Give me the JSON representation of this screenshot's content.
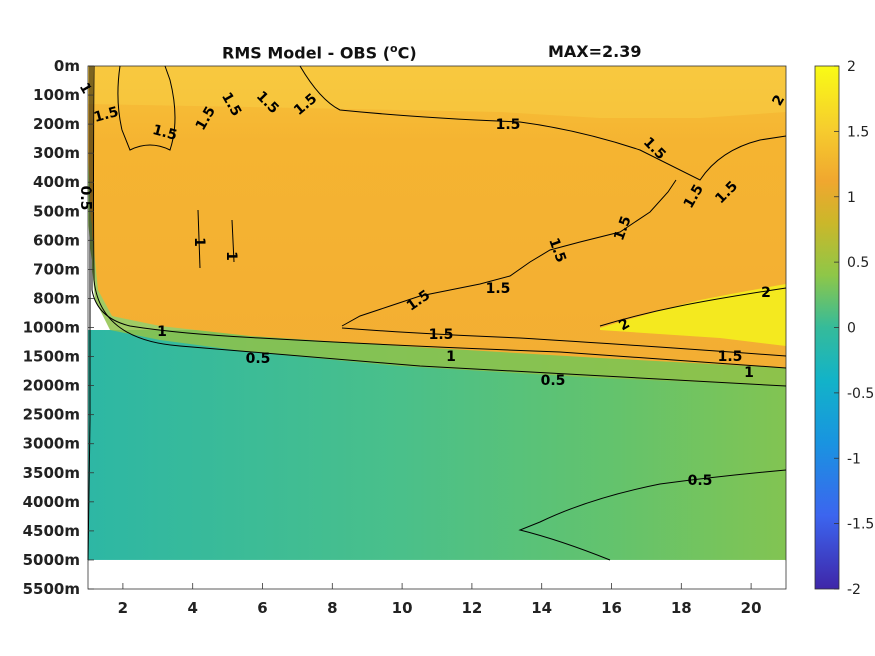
{
  "chart_data": {
    "type": "heatmap",
    "title": "RMS Model - OBS (",
    "title_superscript": "o",
    "title_suffix": "C)",
    "max_label": "MAX=2.39",
    "x": {
      "ticks": [
        2,
        4,
        6,
        8,
        10,
        12,
        14,
        16,
        18,
        20
      ],
      "range": [
        1,
        21
      ],
      "xlabel": ""
    },
    "y": {
      "ticks": [
        "0m",
        "100m",
        "200m",
        "300m",
        "400m",
        "500m",
        "600m",
        "700m",
        "800m",
        "1000m",
        "1500m",
        "2000m",
        "2500m",
        "3000m",
        "3500m",
        "4000m",
        "4500m",
        "5000m",
        "5500m"
      ],
      "ylabel": "",
      "reversed": true,
      "no_data_below": "5000m"
    },
    "colorbar": {
      "ticks": [
        "2",
        "1.5",
        "1",
        "0.5",
        "0",
        "-0.5",
        "-1",
        "-1.5",
        "-2"
      ],
      "range": [
        -2,
        2
      ],
      "colormap": "parula",
      "position": "right"
    },
    "contour_levels": [
      0.5,
      1,
      1.5,
      2
    ],
    "contour_labels": [
      "1",
      "1.5",
      "1.5",
      "1.5",
      "1.5",
      "1.5",
      "1.5",
      "1.5",
      "1.5",
      "2",
      "0.5",
      "1",
      "1",
      "1.5",
      "1.5",
      "1.5",
      "1.5",
      "1.5",
      "1.5",
      "2",
      "2",
      "1",
      "0.5",
      "1.5",
      "1",
      "1.5",
      "1",
      "0.5",
      "0.5"
    ],
    "grid": false
  },
  "colors": {
    "warm": "#f6b331",
    "warm_light": "#f7c23a",
    "hot": "#f4ef1d",
    "mid": "#93c14a",
    "green": "#62c26a",
    "teal": "#2cb79e"
  }
}
